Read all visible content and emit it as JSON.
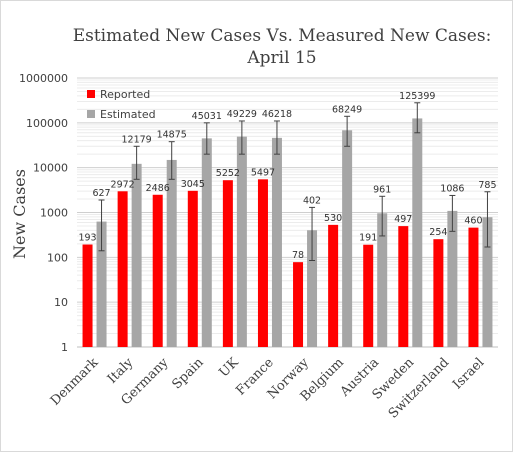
{
  "chart_data": {
    "type": "bar",
    "title_lines": [
      "Estimated New Cases Vs. Measured New Cases:",
      "April 15"
    ],
    "ylabel": "New Cases",
    "xlabel": "",
    "yscale": "log",
    "ylim": [
      1,
      1000000
    ],
    "yticks": [
      "1",
      "10",
      "100",
      "1000",
      "10000",
      "100000",
      "1000000"
    ],
    "grid": true,
    "legend_position": "top-left",
    "categories": [
      "Denmark",
      "Italy",
      "Germany",
      "Spain",
      "UK",
      "France",
      "Norway",
      "Belgium",
      "Austria",
      "Sweden",
      "Switzerland",
      "Israel"
    ],
    "series": [
      {
        "name": "Reported",
        "color": "#ff0000",
        "values": [
          193,
          2972,
          2486,
          3045,
          5252,
          5497,
          78,
          530,
          191,
          497,
          254,
          460
        ],
        "labels": [
          "193",
          "2972",
          "2486",
          "3045",
          "5252",
          "5497",
          "78",
          "530",
          "191",
          "497",
          "254",
          "460"
        ]
      },
      {
        "name": "Estimated",
        "color": "#a6a6a6",
        "values": [
          627,
          12179,
          14875,
          45031,
          49229,
          46218,
          402,
          68249,
          961,
          125399,
          1086,
          785
        ],
        "labels": [
          "627",
          "12179",
          "14875",
          "45031",
          "49229",
          "46218",
          "402",
          "68249",
          "961",
          "125399",
          "1086",
          "785"
        ],
        "error_low": [
          140,
          5500,
          5500,
          20000,
          20000,
          20000,
          85,
          30000,
          300,
          60000,
          380,
          170
        ],
        "error_high": [
          1900,
          30000,
          38000,
          100000,
          110000,
          110000,
          1300,
          140000,
          2300,
          280000,
          2400,
          2900
        ]
      }
    ]
  }
}
